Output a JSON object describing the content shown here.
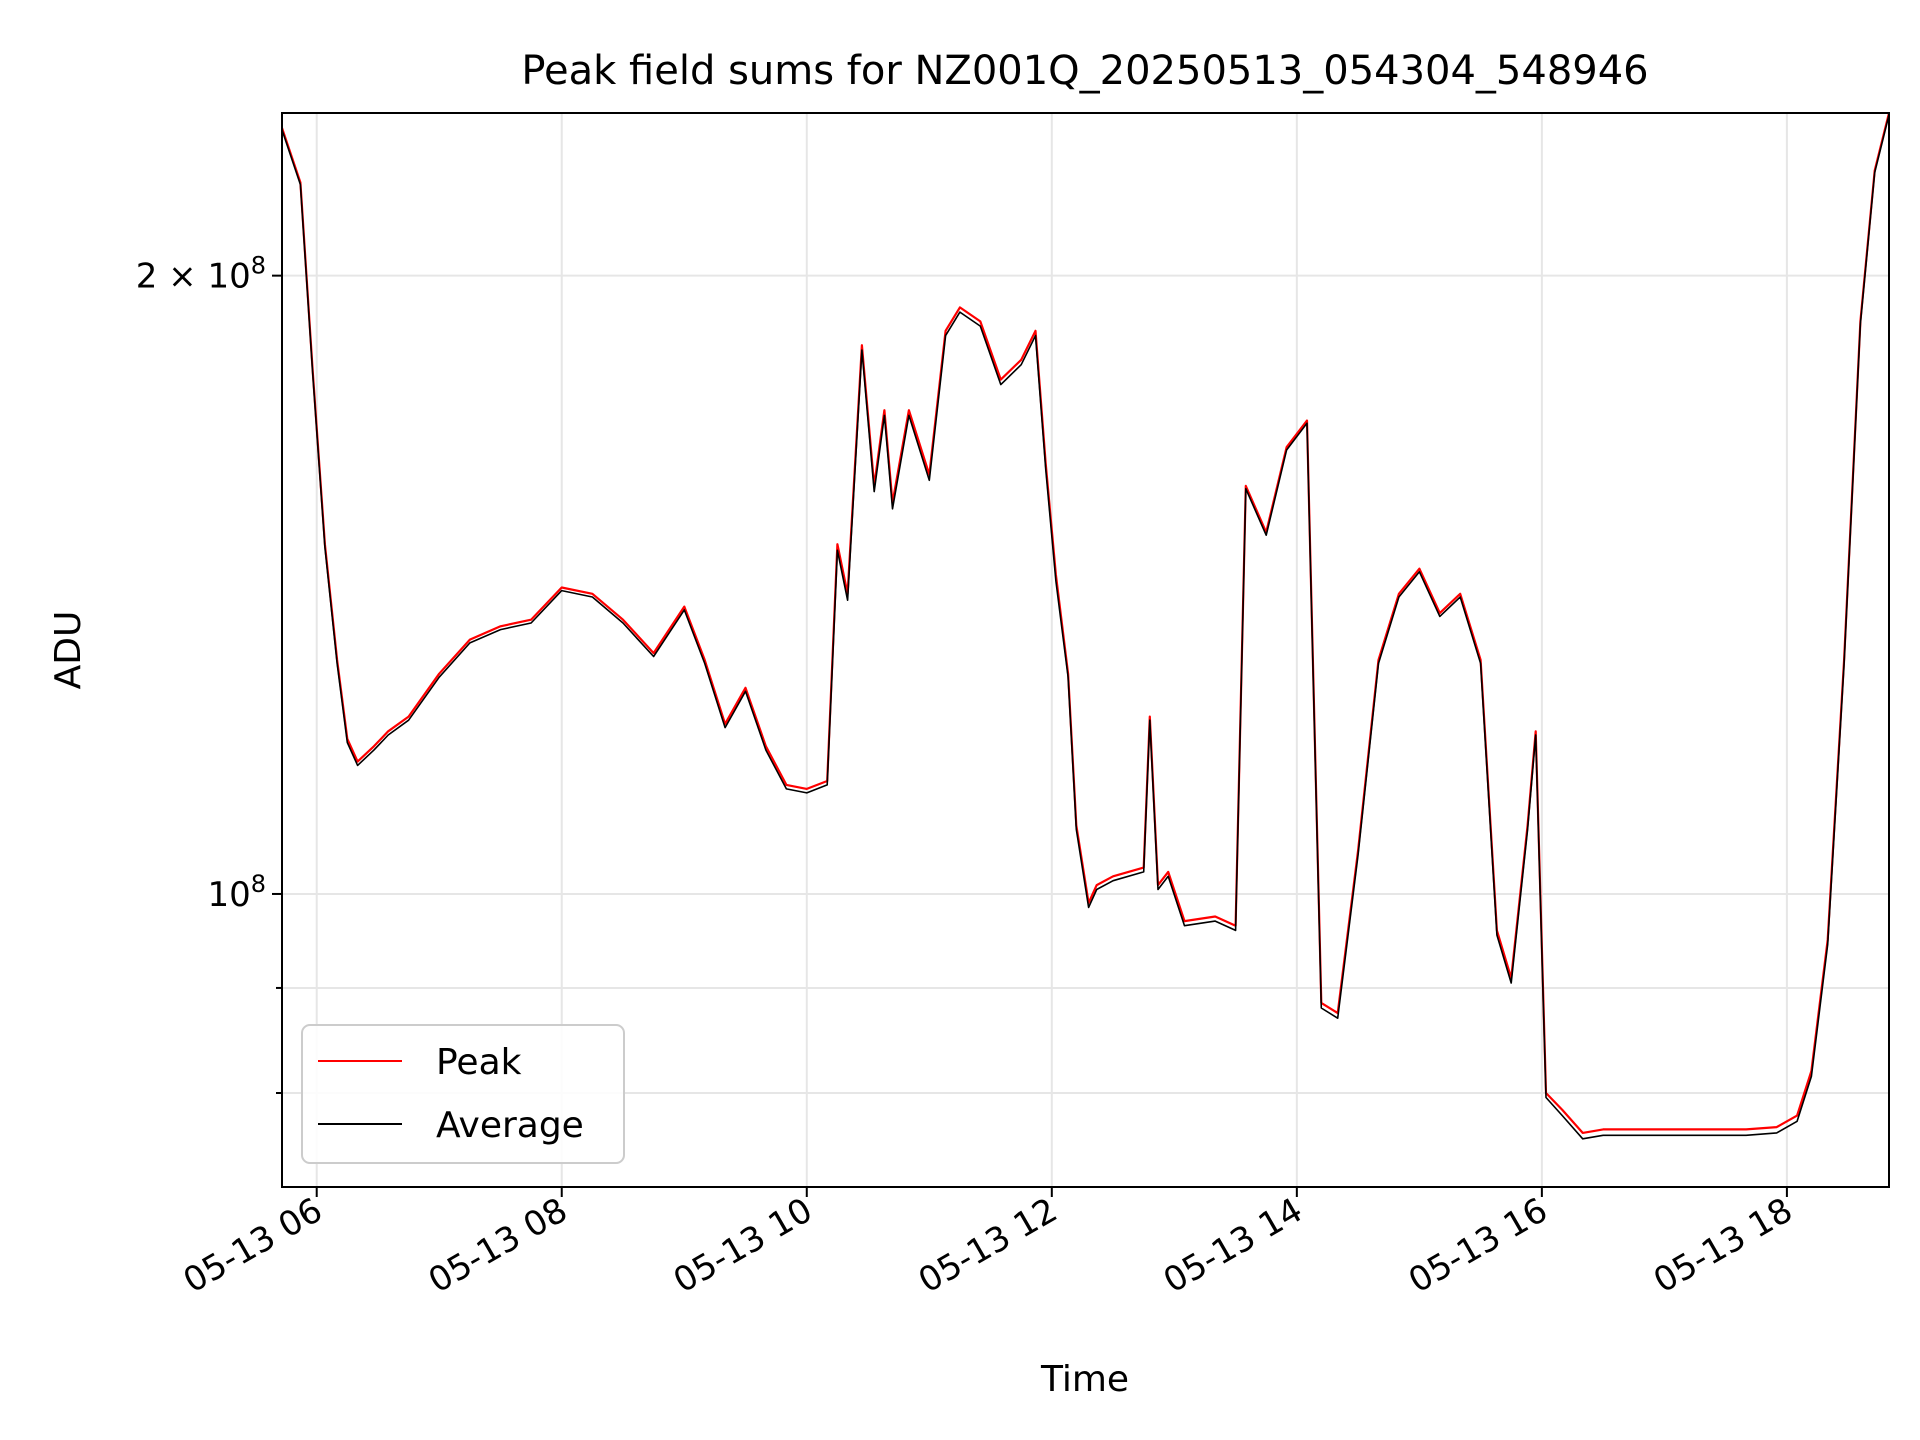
{
  "chart_data": {
    "type": "line",
    "title": "Peak field sums for NZ001Q_20250513_054304_548946",
    "xlabel": "Time",
    "ylabel": "ADU",
    "y_scale": "log",
    "grid": true,
    "legend_position": "lower-left",
    "xlim": [
      "05-13 05:43",
      "05-13 18:50"
    ],
    "ylim": [
      72000000,
      240000000
    ],
    "x_ticks": [
      "05-13 06",
      "05-13 08",
      "05-13 10",
      "05-13 12",
      "05-13 14",
      "05-13 16",
      "05-13 18"
    ],
    "x_tick_hours": [
      6,
      8,
      10,
      12,
      14,
      16,
      18
    ],
    "y_major_ticks": [
      {
        "value": 100000000,
        "label_base": "10",
        "label_exp": "8"
      },
      {
        "value": 200000000,
        "label_base": "2 × 10",
        "label_exp": "8"
      }
    ],
    "y_minor_ticks": [
      80000000,
      90000000
    ],
    "x": [
      "05:43",
      "05:52",
      "05:58",
      "06:04",
      "06:10",
      "06:15",
      "06:20",
      "06:28",
      "06:35",
      "06:45",
      "07:00",
      "07:15",
      "07:30",
      "07:45",
      "08:00",
      "08:15",
      "08:30",
      "08:45",
      "09:00",
      "09:10",
      "09:20",
      "09:30",
      "09:40",
      "09:50",
      "10:00",
      "10:10",
      "10:15",
      "10:20",
      "10:27",
      "10:33",
      "10:38",
      "10:42",
      "10:50",
      "11:00",
      "11:08",
      "11:15",
      "11:25",
      "11:35",
      "11:45",
      "11:52",
      "11:57",
      "12:02",
      "12:08",
      "12:12",
      "12:18",
      "12:22",
      "12:30",
      "12:45",
      "12:48",
      "12:52",
      "12:57",
      "13:05",
      "13:20",
      "13:30",
      "13:35",
      "13:45",
      "13:55",
      "14:05",
      "14:12",
      "14:20",
      "14:30",
      "14:40",
      "14:50",
      "15:00",
      "15:10",
      "15:20",
      "15:30",
      "15:38",
      "15:45",
      "15:53",
      "15:57",
      "16:02",
      "16:10",
      "16:20",
      "16:30",
      "16:40",
      "17:00",
      "17:20",
      "17:40",
      "17:55",
      "18:05",
      "18:12",
      "18:20",
      "18:28",
      "18:36",
      "18:43",
      "18:50"
    ],
    "series": [
      {
        "name": "Peak",
        "color": "#ff0000",
        "values": [
          236000000,
          222000000,
          180000000,
          148000000,
          130000000,
          119000000,
          116000000,
          118000000,
          120000000,
          122000000,
          128000000,
          133000000,
          135000000,
          136000000,
          141000000,
          140000000,
          136000000,
          131000000,
          138000000,
          130000000,
          121000000,
          126000000,
          118000000,
          113000000,
          112500000,
          113500000,
          148000000,
          140000000,
          185000000,
          158000000,
          172000000,
          155000000,
          172000000,
          160000000,
          188000000,
          193000000,
          190000000,
          178000000,
          182000000,
          188000000,
          162000000,
          143000000,
          128000000,
          108000000,
          99000000,
          101000000,
          102000000,
          103000000,
          122000000,
          101000000,
          102500000,
          97000000,
          97500000,
          96500000,
          158000000,
          150000000,
          165000000,
          170000000,
          88500000,
          87500000,
          105000000,
          130000000,
          140000000,
          144000000,
          137000000,
          140000000,
          130000000,
          96000000,
          91000000,
          108000000,
          120000000,
          80000000,
          78500000,
          76500000,
          76800000,
          76800000,
          76800000,
          76800000,
          76800000,
          77000000,
          78000000,
          82000000,
          95000000,
          130000000,
          190000000,
          225000000,
          240000000
        ]
      },
      {
        "name": "Average",
        "color": "#000000",
        "values": [
          235500000,
          221500000,
          179500000,
          147500000,
          129500000,
          118500000,
          115500000,
          117500000,
          119500000,
          121500000,
          127500000,
          132500000,
          134500000,
          135500000,
          140500000,
          139500000,
          135500000,
          130500000,
          137500000,
          129500000,
          120500000,
          125500000,
          117500000,
          112500000,
          112000000,
          113000000,
          147000000,
          139000000,
          184000000,
          157000000,
          171000000,
          154000000,
          171000000,
          159000000,
          187000000,
          192000000,
          189000000,
          177000000,
          181000000,
          187000000,
          161000000,
          142000000,
          127500000,
          107500000,
          98500000,
          100500000,
          101500000,
          102500000,
          121500000,
          100500000,
          102000000,
          96500000,
          97000000,
          96000000,
          157500000,
          149500000,
          164500000,
          169500000,
          88000000,
          87000000,
          104500000,
          129500000,
          139500000,
          143500000,
          136500000,
          139500000,
          129500000,
          95500000,
          90500000,
          107500000,
          119500000,
          79600000,
          78000000,
          76000000,
          76300000,
          76300000,
          76300000,
          76300000,
          76300000,
          76500000,
          77500000,
          81500000,
          94500000,
          129500000,
          189500000,
          224500000,
          239500000
        ]
      }
    ]
  }
}
